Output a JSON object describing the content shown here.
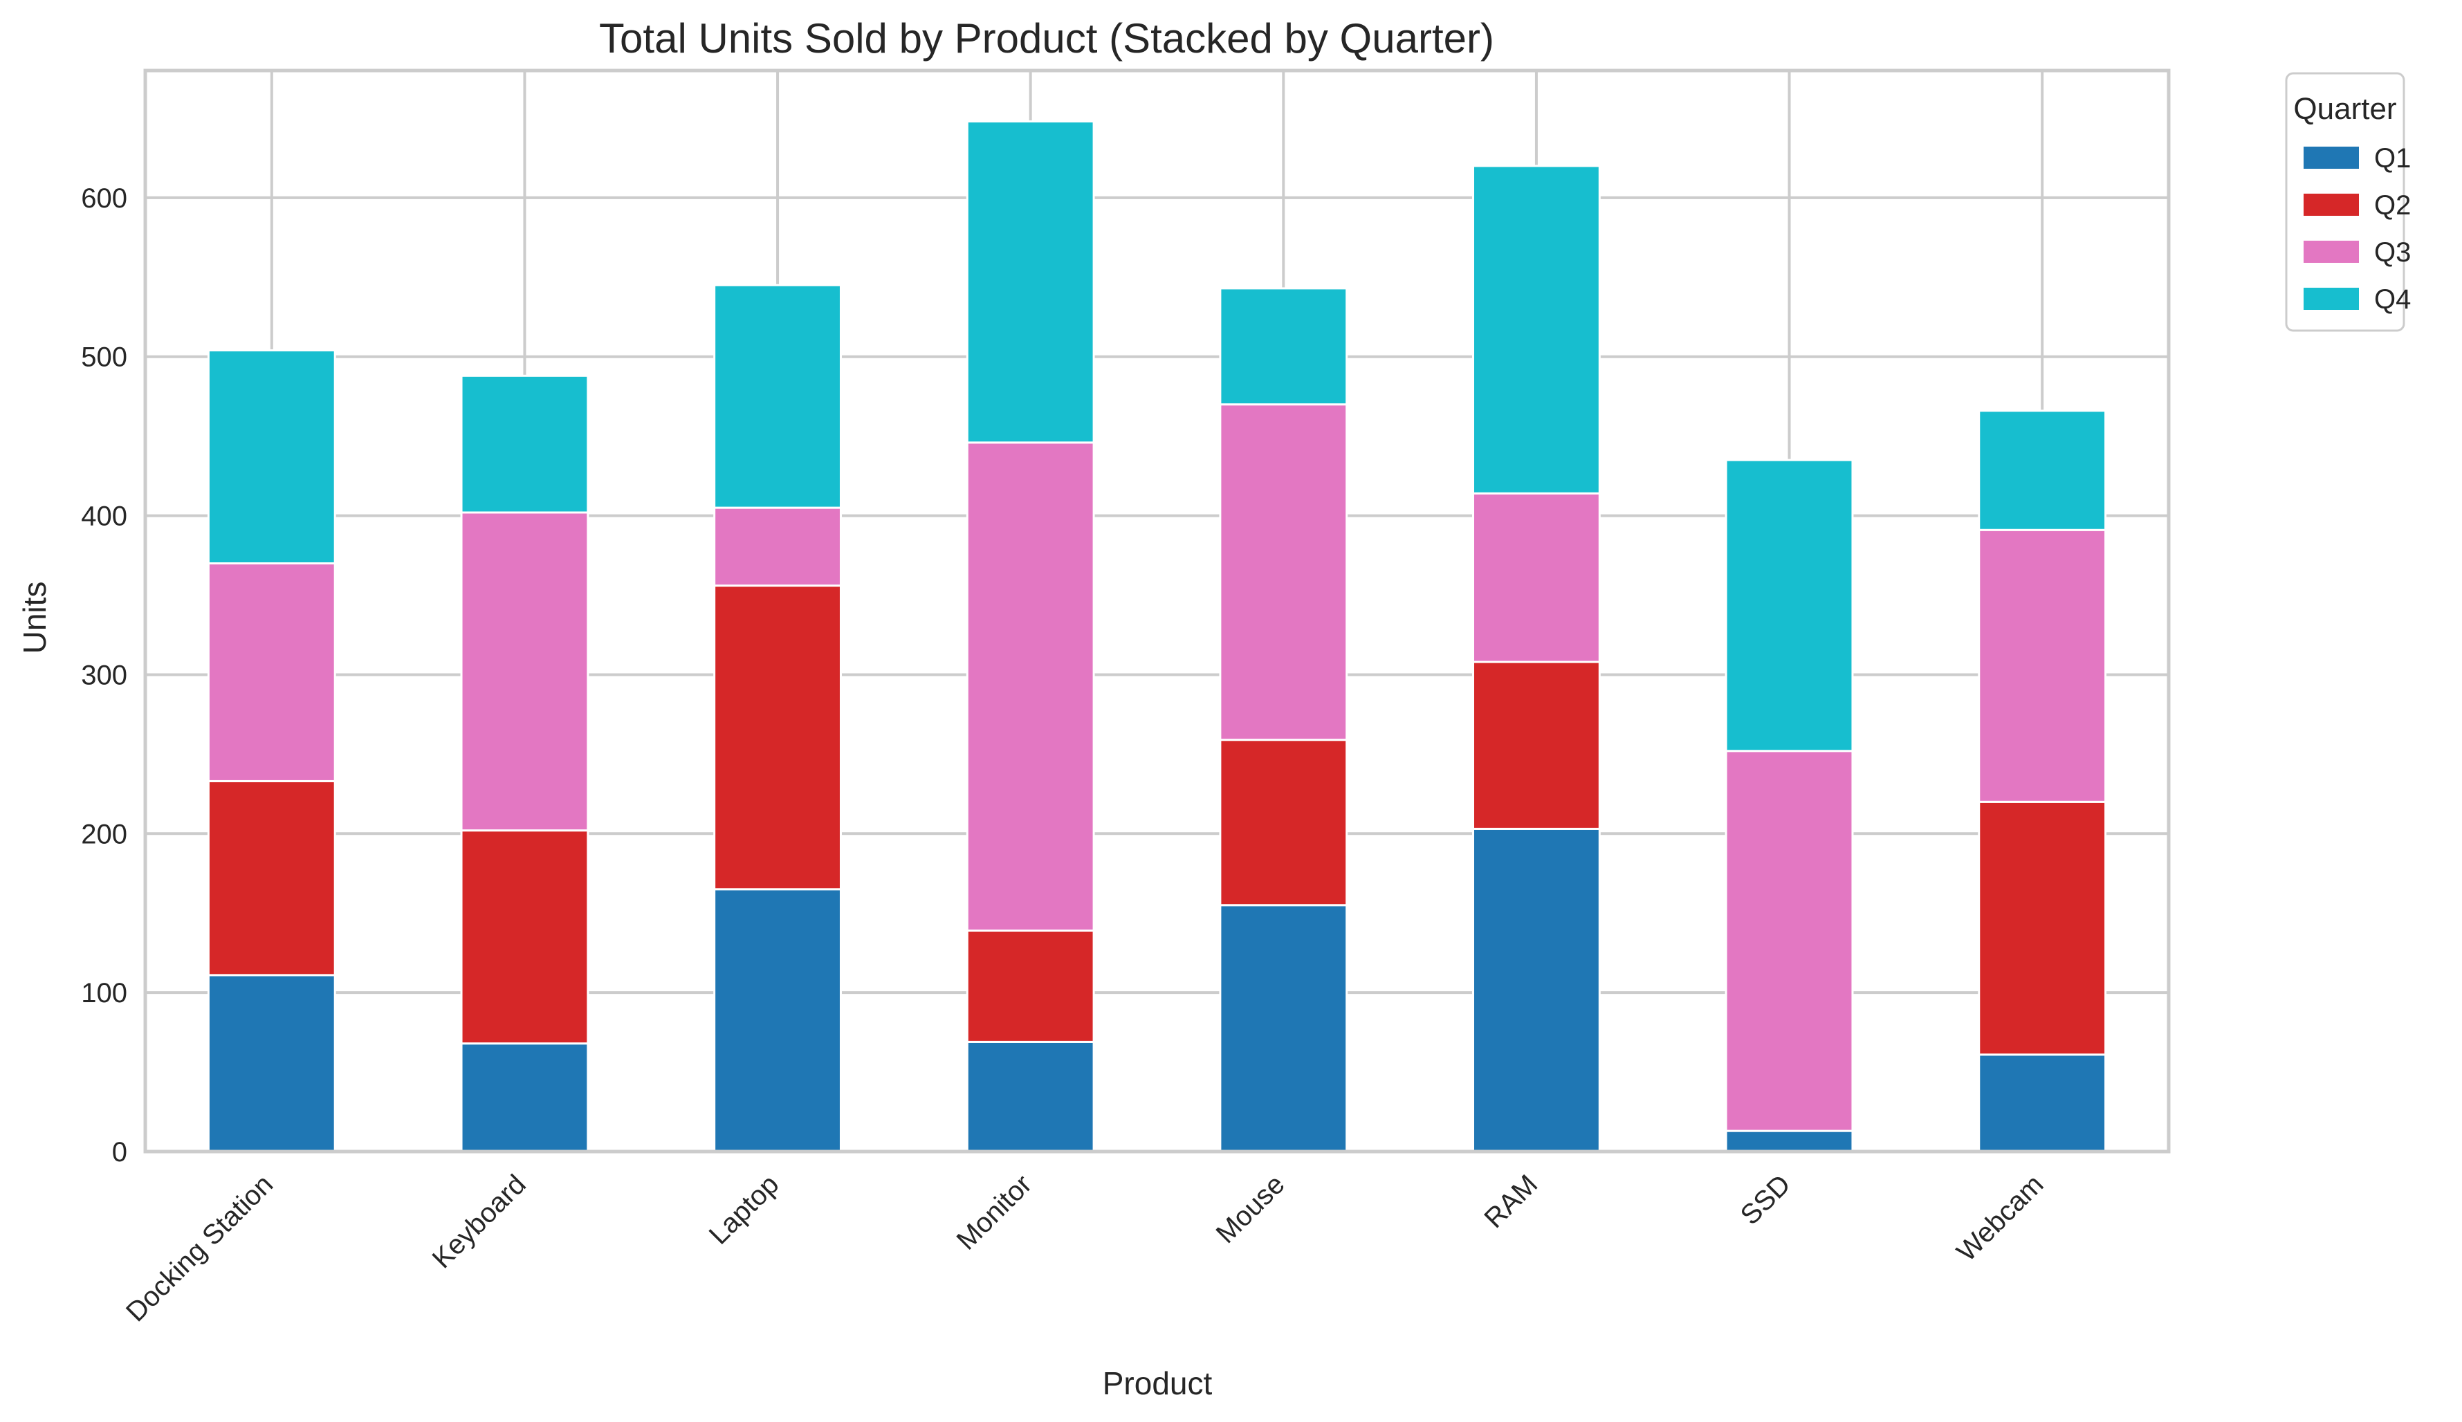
{
  "chart_data": {
    "type": "bar",
    "stacked": true,
    "title": "Total Units Sold by Product (Stacked by Quarter)",
    "xlabel": "Product",
    "ylabel": "Units",
    "ylim": [
      0,
      680
    ],
    "yticks": [
      0,
      100,
      200,
      300,
      400,
      500,
      600
    ],
    "grid": true,
    "legend": {
      "title": "Quarter",
      "placement": "outside-top-right"
    },
    "categories": [
      "Docking Station",
      "Keyboard",
      "Laptop",
      "Monitor",
      "Mouse",
      "RAM",
      "SSD",
      "Webcam"
    ],
    "series": [
      {
        "name": "Q1",
        "color": "#1f77b4",
        "values": [
          111,
          68,
          165,
          69,
          155,
          203,
          13,
          61
        ]
      },
      {
        "name": "Q2",
        "color": "#d62728",
        "values": [
          122,
          134,
          191,
          70,
          104,
          105,
          0,
          159
        ]
      },
      {
        "name": "Q3",
        "color": "#e377c2",
        "values": [
          137,
          200,
          49,
          307,
          211,
          106,
          239,
          171
        ]
      },
      {
        "name": "Q4",
        "color": "#17becf",
        "values": [
          134,
          86,
          140,
          202,
          73,
          206,
          183,
          75
        ]
      }
    ]
  }
}
